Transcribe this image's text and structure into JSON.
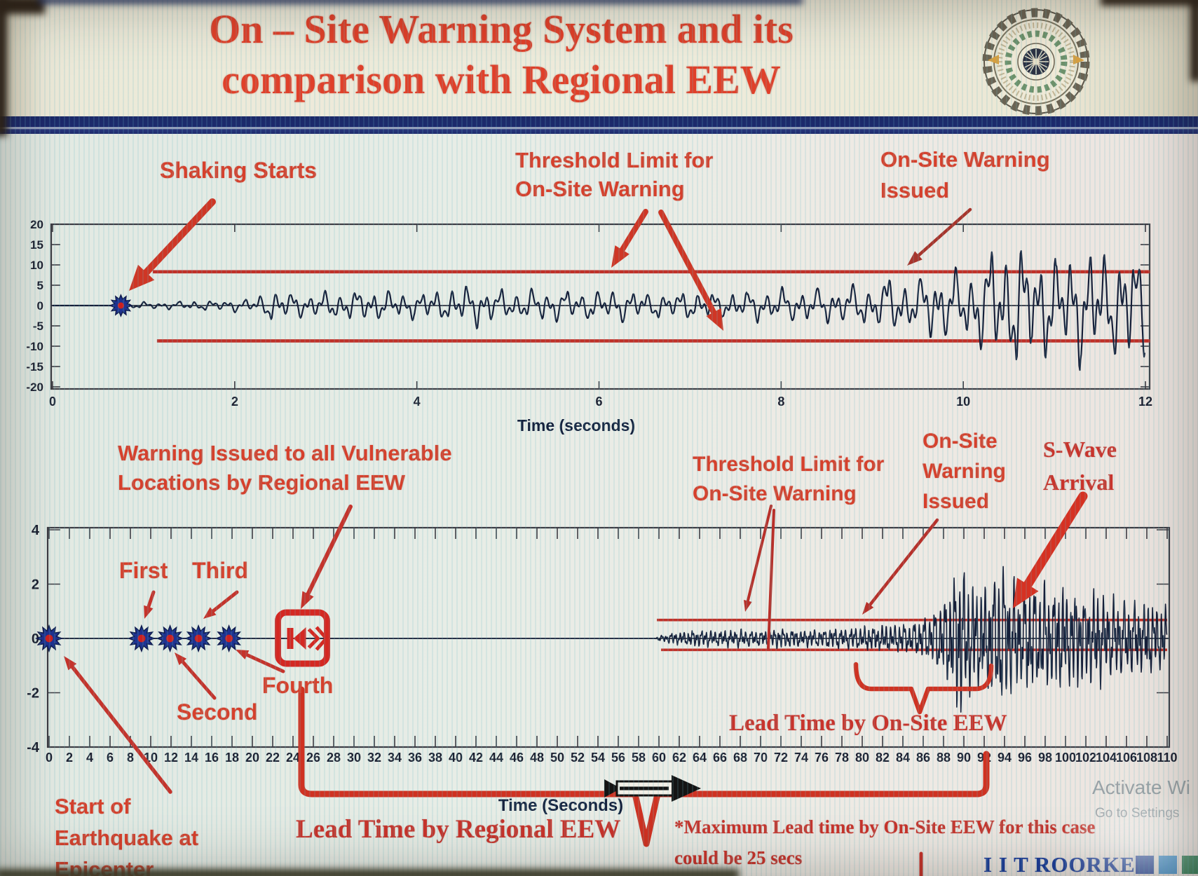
{
  "slide": {
    "title_line1": "On – Site Warning System and its",
    "title_line2": "comparison with Regional EEW",
    "brand": "I I T ROORKEE",
    "watermark_line1": "Activate Wi",
    "watermark_line2": "Go to Settings",
    "footnote_line1": "*Maximum Lead time by On-Site EEW for this case",
    "footnote_line2": "could be 25 secs"
  },
  "annotations": {
    "shaking_starts": "Shaking Starts",
    "threshold_top_l1": "Threshold Limit for",
    "threshold_top_l2": "On-Site Warning",
    "onsite_top_l1": "On-Site Warning",
    "onsite_top_l2": "Issued",
    "regional_warning_l1": "Warning Issued to all Vulnerable",
    "regional_warning_l2": "Locations by Regional EEW",
    "first": "First",
    "third": "Third",
    "second": "Second",
    "fourth": "Fourth",
    "threshold_bottom_l1": "Threshold Limit for",
    "threshold_bottom_l2": "On-Site Warning",
    "onsite_bottom_l1": "On-Site",
    "onsite_bottom_l2": "Warning",
    "onsite_bottom_l3": "Issued",
    "swave_l1": "S-Wave",
    "swave_l2": "Arrival",
    "lead_onsite": "Lead Time by On-Site EEW",
    "lead_regional": "Lead Time by Regional EEW",
    "epicenter_l1": "Start of",
    "epicenter_l2": "Earthquake at",
    "epicenter_l3": "Epicenter"
  },
  "colors": {
    "title_red": "#e0402a",
    "label_red": "#d6402c",
    "arrow_red": "#cf3625",
    "dark_red": "#b8302a",
    "threshold_red": "#c03028",
    "wave": "#16203a",
    "axis": "#3c3c44",
    "star_blue": "#1e3390",
    "star_core": "#cc2020",
    "navy_text": "#15233f",
    "brand_navy": "#1b3e9c",
    "brand_squares": [
      "#1e3f96",
      "#2e86ca",
      "#20764a"
    ]
  },
  "chart_data": [
    {
      "id": "onsite-record",
      "type": "line",
      "title": "",
      "xlabel": "Time (seconds)",
      "ylabel": "",
      "xlim": [
        0,
        12
      ],
      "xtick_step": 2,
      "ylim": [
        -20,
        20
      ],
      "ytick_step": 5,
      "grid": false,
      "legend": "none",
      "thresholds": [
        8.3,
        -8.7
      ],
      "threshold_span": [
        1.1,
        12.05
      ],
      "events": {
        "shaking_starts_t": 0.75,
        "onsite_warning_issued_t": 9.35
      },
      "wave": {
        "start_t": 0.75,
        "freq": 5.5,
        "seed": 3.7,
        "spiky": false,
        "envelope": [
          [
            0.75,
            0
          ],
          [
            0.9,
            0.8
          ],
          [
            1.3,
            0.9
          ],
          [
            1.8,
            1.3
          ],
          [
            2.2,
            1.8
          ],
          [
            2.45,
            4.3
          ],
          [
            2.7,
            3.1
          ],
          [
            3.1,
            3.6
          ],
          [
            3.5,
            4.1
          ],
          [
            3.9,
            3.1
          ],
          [
            4.3,
            3.8
          ],
          [
            4.6,
            5.3
          ],
          [
            5.0,
            3.4
          ],
          [
            5.4,
            4.3
          ],
          [
            5.8,
            3.6
          ],
          [
            6.2,
            4.4
          ],
          [
            6.6,
            3.1
          ],
          [
            7.0,
            3.7
          ],
          [
            7.4,
            3.0
          ],
          [
            7.8,
            3.9
          ],
          [
            8.2,
            4.3
          ],
          [
            8.6,
            4.8
          ],
          [
            9.0,
            5.4
          ],
          [
            9.2,
            7.4
          ],
          [
            9.45,
            6.2
          ],
          [
            9.7,
            9.8
          ],
          [
            10.0,
            8.2
          ],
          [
            10.3,
            13.5
          ],
          [
            10.55,
            16.2
          ],
          [
            10.8,
            13.0
          ],
          [
            11.1,
            11.6
          ],
          [
            11.35,
            14.8
          ],
          [
            11.6,
            12.2
          ],
          [
            11.8,
            15.2
          ],
          [
            12.0,
            12.6
          ]
        ]
      }
    },
    {
      "id": "regional-comparison",
      "type": "line",
      "title": "",
      "xlabel": "Time (Seconds)",
      "ylabel": "",
      "xlim": [
        0,
        110
      ],
      "xtick_step": 2,
      "ylim": [
        -4,
        4
      ],
      "ytick_step": 2,
      "grid": false,
      "legend": "none",
      "thresholds": [
        0.68,
        -0.42
      ],
      "threshold_span": [
        59.8,
        110
      ],
      "events": {
        "earthquake_origin_t": 0,
        "station_triggers": [
          {
            "label": "First",
            "t": 9.1
          },
          {
            "label": "Second",
            "t": 11.9
          },
          {
            "label": "Third",
            "t": 14.7
          },
          {
            "label": "Fourth",
            "t": 17.7
          }
        ],
        "regional_warning_issued_t": 25,
        "onsite_warning_issued_t": 80,
        "s_wave_arrival_t": 94,
        "lead_time_regional_span": [
          24.8,
          92.3
        ],
        "lead_time_onsite_span": [
          79.4,
          92.7
        ],
        "max_onsite_lead_time_note_s": 25
      },
      "wave": {
        "start_t": 59.6,
        "freq": 2.15,
        "seed": 8.1,
        "spiky": true,
        "envelope": [
          [
            59.6,
            0
          ],
          [
            60,
            0.1
          ],
          [
            61,
            0.18
          ],
          [
            62.5,
            0.26
          ],
          [
            64,
            0.31
          ],
          [
            66,
            0.27
          ],
          [
            68,
            0.33
          ],
          [
            70,
            0.29
          ],
          [
            72,
            0.35
          ],
          [
            74,
            0.3
          ],
          [
            76,
            0.34
          ],
          [
            78,
            0.38
          ],
          [
            80,
            0.42
          ],
          [
            82,
            0.46
          ],
          [
            84,
            0.52
          ],
          [
            85.5,
            0.62
          ],
          [
            86.5,
            0.8
          ],
          [
            87.5,
            1.25
          ],
          [
            88.3,
            1.7
          ],
          [
            89.0,
            2.1
          ],
          [
            89.7,
            3.1
          ],
          [
            90.3,
            2.2
          ],
          [
            91,
            1.8
          ],
          [
            92,
            2.0
          ],
          [
            93,
            2.4
          ],
          [
            93.8,
            2.8
          ],
          [
            94.6,
            2.2
          ],
          [
            95.5,
            1.9
          ],
          [
            97,
            2.0
          ],
          [
            98.5,
            1.8
          ],
          [
            100,
            1.9
          ],
          [
            101.5,
            1.6
          ],
          [
            103,
            1.7
          ],
          [
            104.5,
            1.4
          ],
          [
            106,
            1.5
          ],
          [
            107.5,
            1.3
          ],
          [
            109,
            1.25
          ],
          [
            110,
            1.1
          ]
        ]
      }
    }
  ]
}
